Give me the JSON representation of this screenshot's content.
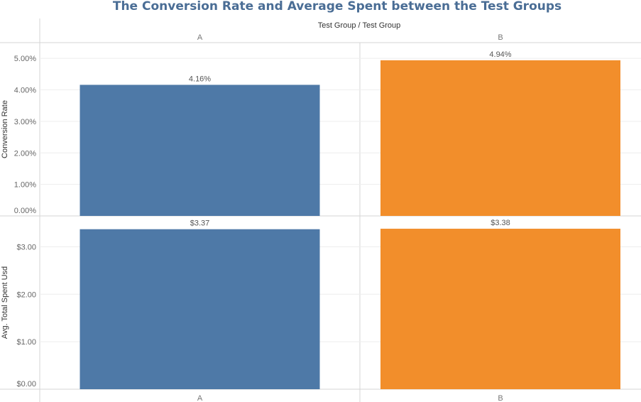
{
  "title": "The Conversion Rate and Average Spent between the Test Groups",
  "colors": {
    "title": "#4a6d95",
    "A": "#4e79a7",
    "B": "#f28e2b",
    "grid": "#eeeeee",
    "divider": "#d6d6d6"
  },
  "column_header": "Test Group / Test Group",
  "chart_data": [
    {
      "type": "bar",
      "categories": [
        "A",
        "B"
      ],
      "values": [
        4.16,
        4.94
      ],
      "value_labels": [
        "4.16%",
        "4.94%"
      ],
      "ylabel": "Conversion Rate",
      "ylim": [
        0,
        5.5
      ],
      "yticks": [
        0,
        1,
        2,
        3,
        4,
        5
      ],
      "ytick_labels": [
        "0.00%",
        "1.00%",
        "2.00%",
        "3.00%",
        "4.00%",
        "5.00%"
      ],
      "grid": true
    },
    {
      "type": "bar",
      "categories": [
        "A",
        "B"
      ],
      "values": [
        3.37,
        3.38
      ],
      "value_labels": [
        "$3.37",
        "$3.38"
      ],
      "ylabel": "Avg. Total Spent Usd",
      "ylim": [
        0,
        3.65
      ],
      "yticks": [
        0,
        1,
        2,
        3
      ],
      "ytick_labels": [
        "$0.00",
        "$1.00",
        "$2.00",
        "$3.00"
      ],
      "grid": true
    }
  ]
}
